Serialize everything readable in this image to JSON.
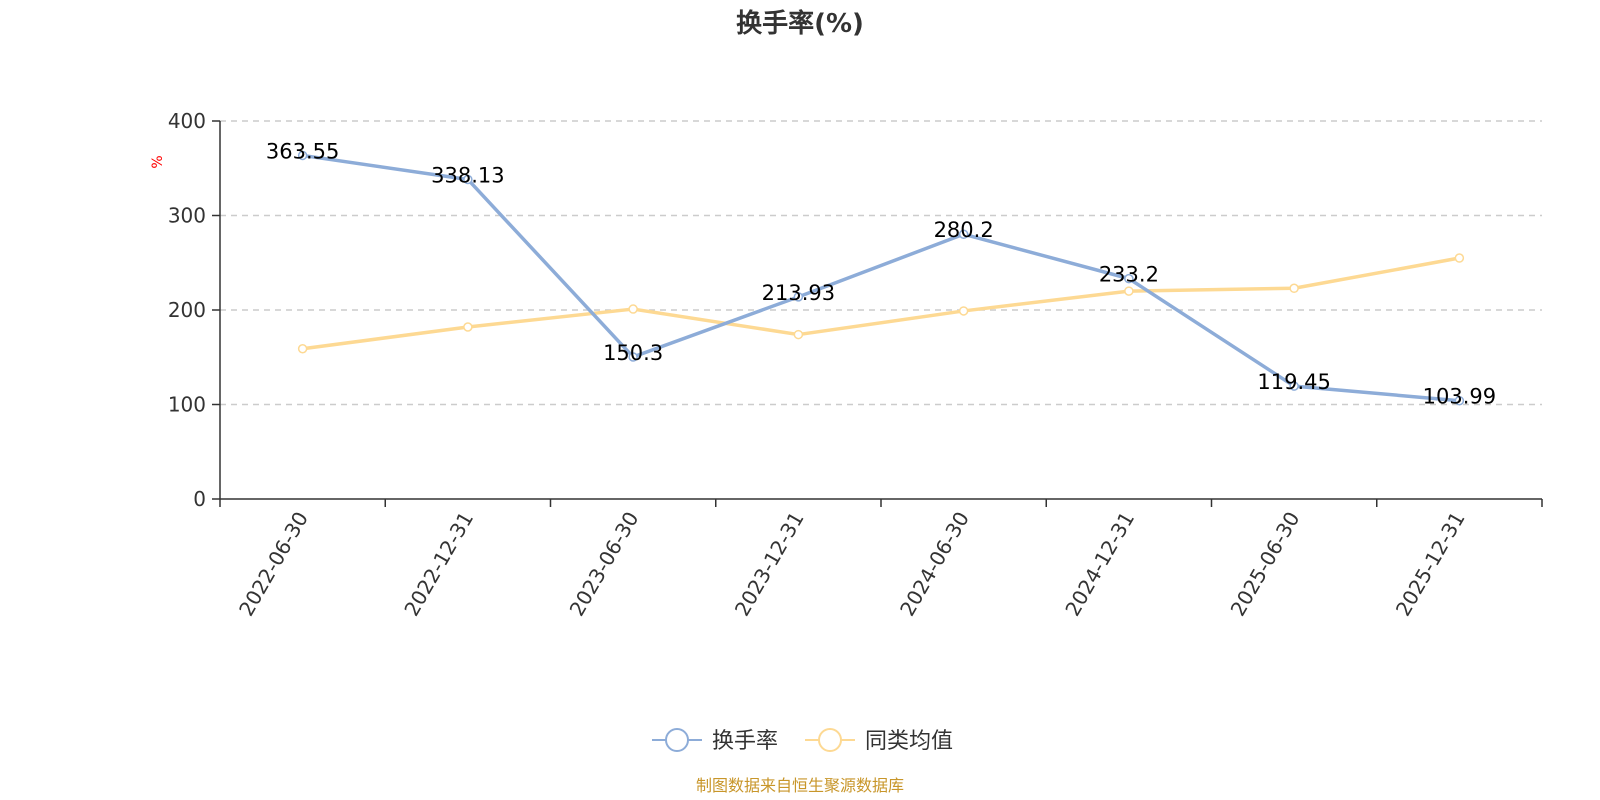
{
  "chart_data": {
    "type": "line",
    "title": "换手率(%)",
    "ylabel": "%",
    "categories": [
      "2022-06-30",
      "2022-12-31",
      "2023-06-30",
      "2023-12-31",
      "2024-06-30",
      "2024-12-31",
      "2025-06-30",
      "2025-12-31"
    ],
    "ylim": [
      0,
      400
    ],
    "yticks": [
      0,
      100,
      200,
      300,
      400
    ],
    "grid": true,
    "legend_position": "bottom",
    "series": [
      {
        "name": "换手率",
        "color": "#8dacd8",
        "values": [
          363.55,
          338.13,
          150.3,
          213.93,
          280.2,
          233.2,
          119.45,
          103.99
        ],
        "labels": [
          "363.55",
          "338.13",
          "150.3",
          "213.93",
          "280.2",
          "233.2",
          "119.45",
          "103.99"
        ]
      },
      {
        "name": "同类均值",
        "color": "#fdd993",
        "values": [
          159,
          182,
          201,
          174,
          199,
          220,
          223,
          255
        ]
      }
    ],
    "source": "制图数据来自恒生聚源数据库"
  }
}
